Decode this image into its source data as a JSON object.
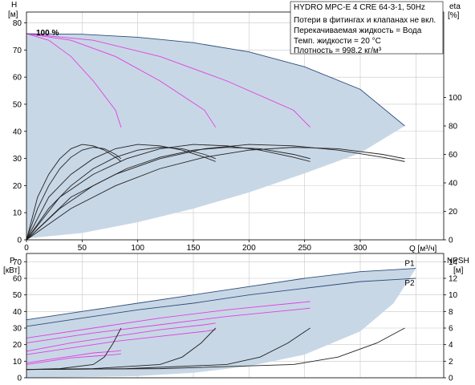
{
  "colors": {
    "envelope": "#c8d7e6",
    "head_curve": "#2e4d7a",
    "eff_curve": "#e040e0",
    "grid": "#c8c8c8",
    "axis": "#000000"
  },
  "info_box": {
    "title": "HYDRO MPC-E 4 CRE 64-3-1, 50Hz",
    "lines": [
      "Потери в фитингах и клапанах не вкл.",
      "Перекачиваемая жидкость = Вода",
      "Темп. жидкости = 20 °C",
      "Плотность = 998.2 кг/м³"
    ]
  },
  "chart_data": [
    {
      "type": "line",
      "title": "",
      "y_left": {
        "label_top": "H",
        "label_unit": "[м]",
        "ticks": [
          "0",
          "10",
          "20",
          "30",
          "40",
          "50",
          "60",
          "70",
          "80"
        ],
        "ylim": [
          0,
          84
        ]
      },
      "y_right": {
        "label_top": "eta",
        "label_unit": "[%]",
        "ticks": [
          "0",
          "20",
          "40",
          "60",
          "80",
          "100"
        ],
        "ylim": [
          0,
          160
        ]
      },
      "x_axis": {
        "label": "Q [м³/ч]",
        "ticks": [
          "0",
          "50",
          "100",
          "150",
          "200",
          "250",
          "300"
        ],
        "xlim": [
          0,
          375
        ]
      },
      "annotation": "100 %",
      "envelope": {
        "upper": [
          [
            0,
            76
          ],
          [
            50,
            75.8
          ],
          [
            100,
            74.7
          ],
          [
            150,
            72.7
          ],
          [
            200,
            69.3
          ],
          [
            250,
            63.8
          ],
          [
            300,
            55.5
          ],
          [
            340,
            42
          ]
        ],
        "lower": [
          [
            340,
            42
          ],
          [
            300,
            32
          ],
          [
            250,
            24.5
          ],
          [
            200,
            17.5
          ],
          [
            150,
            11.5
          ],
          [
            100,
            6.5
          ],
          [
            50,
            2.5
          ],
          [
            0,
            0.5
          ]
        ]
      },
      "series": [
        {
          "y_axis": "left",
          "x": [
            0,
            20,
            40,
            60,
            80,
            85
          ],
          "values": [
            76,
            73.6,
            67.6,
            58.6,
            47.8,
            41.5
          ]
        },
        {
          "y_axis": "left",
          "x": [
            0,
            40,
            80,
            120,
            160,
            170
          ],
          "values": [
            76,
            73.6,
            67.6,
            58.6,
            47.8,
            41.5
          ]
        },
        {
          "y_axis": "left",
          "x": [
            0,
            60,
            120,
            180,
            240,
            255
          ],
          "values": [
            76,
            73.6,
            67.6,
            58.6,
            47.8,
            41.5
          ]
        },
        {
          "y_axis": "left",
          "x": [
            0,
            50,
            100,
            150,
            200,
            250,
            300,
            340
          ],
          "values": [
            76,
            75.8,
            74.7,
            72.7,
            69.3,
            63.8,
            55.5,
            42
          ]
        },
        {
          "y_axis": "right",
          "x": [
            0,
            10,
            20,
            30,
            40,
            50,
            60,
            70,
            80,
            85
          ],
          "values": [
            0,
            22,
            38,
            50,
            58,
            63,
            65,
            64,
            60,
            57
          ]
        },
        {
          "y_axis": "right",
          "x": [
            0,
            10,
            20,
            30,
            40,
            50,
            60,
            70,
            80,
            85
          ],
          "values": [
            0,
            30,
            46,
            57,
            64,
            67,
            66,
            63,
            58,
            55
          ]
        },
        {
          "y_axis": "right",
          "x": [
            0,
            20,
            40,
            60,
            80,
            100,
            120,
            140,
            160,
            170
          ],
          "values": [
            0,
            22,
            38,
            50,
            58,
            63,
            65,
            64,
            60,
            57
          ]
        },
        {
          "y_axis": "right",
          "x": [
            0,
            20,
            40,
            60,
            80,
            100,
            120,
            140,
            160,
            170
          ],
          "values": [
            0,
            30,
            46,
            57,
            64,
            67,
            66,
            63,
            58,
            55
          ]
        },
        {
          "y_axis": "right",
          "x": [
            0,
            30,
            60,
            90,
            120,
            150,
            180,
            210,
            240,
            255
          ],
          "values": [
            0,
            22,
            38,
            50,
            58,
            63,
            65,
            64,
            60,
            57
          ]
        },
        {
          "y_axis": "right",
          "x": [
            0,
            30,
            60,
            90,
            120,
            150,
            180,
            210,
            240,
            255
          ],
          "values": [
            0,
            30,
            46,
            57,
            64,
            67,
            66,
            63,
            58,
            55
          ]
        },
        {
          "y_axis": "right",
          "x": [
            0,
            40,
            80,
            120,
            160,
            200,
            240,
            280,
            320,
            340
          ],
          "values": [
            0,
            22,
            38,
            50,
            58,
            63,
            65,
            64,
            60,
            57
          ]
        },
        {
          "y_axis": "right",
          "x": [
            0,
            40,
            80,
            120,
            160,
            200,
            240,
            280,
            320,
            340
          ],
          "values": [
            0,
            30,
            46,
            57,
            64,
            67,
            66,
            63,
            58,
            55
          ]
        }
      ]
    },
    {
      "type": "line",
      "title": "",
      "y_left": {
        "label_top": "P",
        "label_unit": "[кВт]",
        "ticks": [
          "0",
          "10",
          "20",
          "30",
          "40",
          "50",
          "60",
          "70"
        ],
        "ylim": [
          0,
          75
        ]
      },
      "y_right": {
        "label_top": "NPSH",
        "label_unit": "[м]",
        "ticks": [
          "0",
          "2",
          "4",
          "6",
          "8",
          "10",
          "12",
          "14"
        ],
        "ylim": [
          0,
          15
        ]
      },
      "x_axis": {
        "label": "",
        "ticks": [],
        "xlim": [
          0,
          375
        ]
      },
      "envelope": {
        "upper": [
          [
            0,
            35
          ],
          [
            50,
            40
          ],
          [
            100,
            45
          ],
          [
            150,
            50
          ],
          [
            200,
            55
          ],
          [
            250,
            60
          ],
          [
            300,
            64
          ],
          [
            350,
            66
          ]
        ],
        "lower": [
          [
            350,
            66
          ],
          [
            330,
            45
          ],
          [
            300,
            28
          ],
          [
            250,
            14
          ],
          [
            200,
            7
          ],
          [
            150,
            3
          ],
          [
            100,
            1
          ],
          [
            50,
            0.5
          ],
          [
            0,
            0
          ]
        ]
      },
      "series": [
        {
          "name": "P1",
          "y_axis": "left",
          "x": [
            0,
            50,
            100,
            150,
            200,
            250,
            300,
            350
          ],
          "values": [
            35,
            40,
            45,
            50,
            55,
            60,
            64,
            66
          ]
        },
        {
          "name": "P2",
          "y_axis": "left",
          "x": [
            0,
            50,
            100,
            150,
            200,
            250,
            300,
            350
          ],
          "values": [
            31,
            36,
            41,
            45,
            50,
            54,
            58,
            60
          ]
        },
        {
          "y_axis": "left",
          "x": [
            0,
            60,
            120,
            180,
            240,
            255
          ],
          "values": [
            24,
            30,
            36,
            41,
            45,
            46
          ]
        },
        {
          "y_axis": "left",
          "x": [
            0,
            60,
            120,
            180,
            240,
            255
          ],
          "values": [
            21,
            27,
            32,
            37,
            41,
            42
          ]
        },
        {
          "y_axis": "left",
          "x": [
            0,
            40,
            80,
            120,
            160,
            170
          ],
          "values": [
            16,
            21,
            25,
            29,
            32,
            33
          ]
        },
        {
          "y_axis": "left",
          "x": [
            0,
            40,
            80,
            120,
            160,
            170
          ],
          "values": [
            14,
            18,
            22,
            25,
            28,
            29
          ]
        },
        {
          "y_axis": "left",
          "x": [
            0,
            20,
            40,
            60,
            80,
            85
          ],
          "values": [
            9,
            11,
            13,
            15,
            16,
            16.5
          ]
        },
        {
          "y_axis": "left",
          "x": [
            0,
            20,
            40,
            60,
            80,
            85
          ],
          "values": [
            8,
            10,
            12,
            13,
            14,
            14.5
          ]
        },
        {
          "y_axis": "right",
          "x": [
            0,
            30,
            60,
            70,
            78,
            85
          ],
          "values": [
            1,
            1.1,
            1.6,
            2.5,
            4.2,
            6
          ]
        },
        {
          "y_axis": "right",
          "x": [
            0,
            60,
            120,
            140,
            157,
            170
          ],
          "values": [
            1,
            1.1,
            1.6,
            2.5,
            4.2,
            6
          ]
        },
        {
          "y_axis": "right",
          "x": [
            0,
            90,
            180,
            210,
            235,
            255
          ],
          "values": [
            1,
            1.1,
            1.6,
            2.5,
            4.2,
            6
          ]
        },
        {
          "y_axis": "right",
          "x": [
            0,
            120,
            240,
            280,
            315,
            340
          ],
          "values": [
            1,
            1.1,
            1.6,
            2.5,
            4.2,
            6
          ]
        }
      ]
    }
  ]
}
